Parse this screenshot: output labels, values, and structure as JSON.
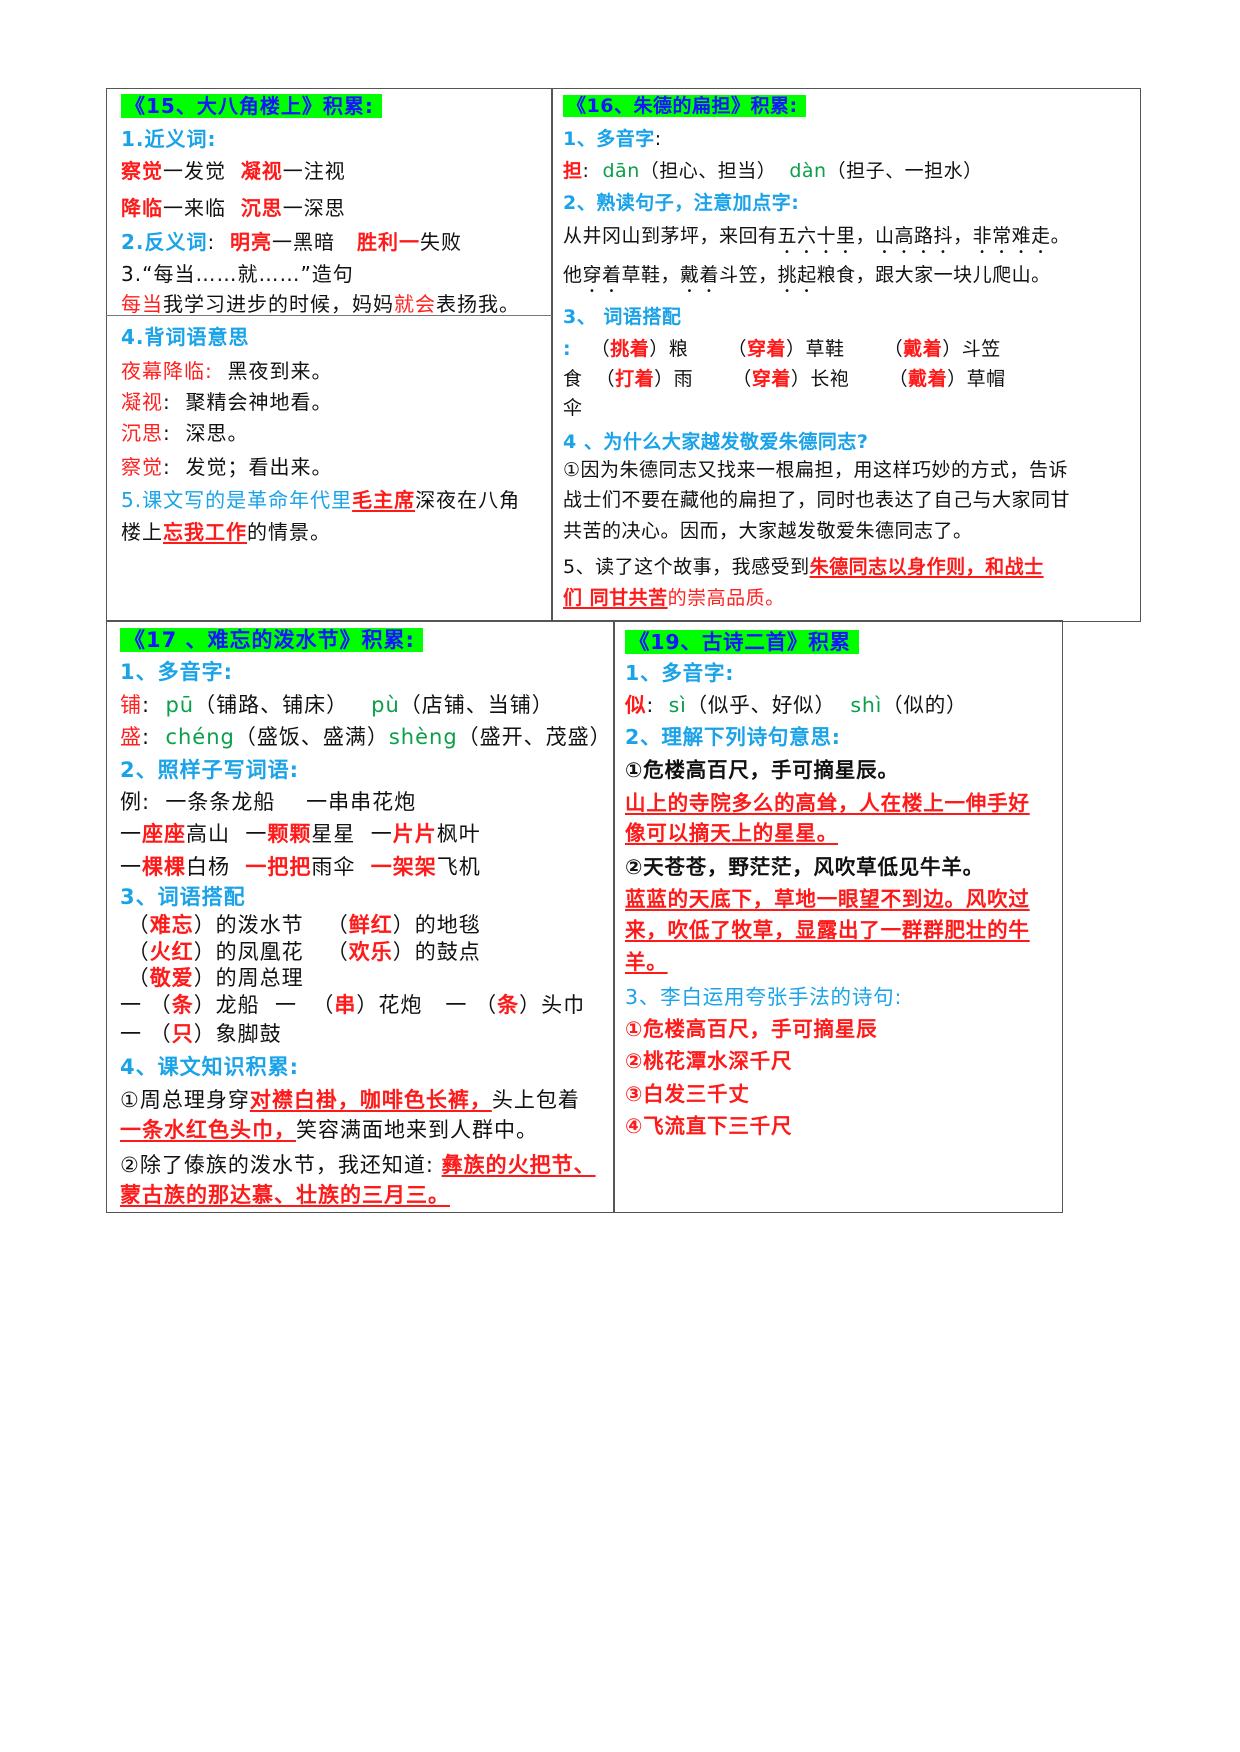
{
  "blocks": [
    {
      "id": "lesson-15",
      "lines": [
        [
          [
            "h",
            "《15、大八角楼上》积累:"
          ]
        ],
        [
          [
            "c",
            "1.近义词:"
          ]
        ],
        [
          [
            "r",
            "察觉"
          ],
          [
            "k",
            "一发觉  "
          ],
          [
            "r",
            "凝视"
          ],
          [
            "k",
            "一注视"
          ]
        ],
        [
          [
            "r",
            "降临"
          ],
          [
            "k",
            "一来临  "
          ],
          [
            "r",
            "沉思"
          ],
          [
            "k",
            "一深思"
          ]
        ],
        [
          [
            "c",
            "2.反义词"
          ],
          [
            "k",
            ":  "
          ],
          [
            "r",
            "明亮"
          ],
          [
            "k",
            "一黑暗   "
          ],
          [
            "r",
            "胜利一"
          ],
          [
            "k",
            "失败"
          ]
        ],
        [
          [
            "k",
            "3.“每当……就……”造句"
          ]
        ],
        [
          [
            "rn",
            "每当"
          ],
          [
            "k",
            "我学习进步的时候，妈妈"
          ],
          [
            "rn",
            "就会"
          ],
          [
            "k",
            "表扬我。"
          ]
        ],
        [
          [
            "c",
            "4.背词语意思"
          ]
        ],
        [
          [
            "rn",
            "夜幕降临: "
          ],
          [
            "k",
            " 黑夜到来。"
          ]
        ],
        [
          [
            "rn",
            "凝视"
          ],
          [
            "k",
            ":  聚精会神地看。"
          ]
        ],
        [
          [
            "rn",
            "沉思"
          ],
          [
            "k",
            ":  深思。"
          ]
        ],
        [
          [
            "rn",
            "察觉"
          ],
          [
            "k",
            ":  发觉；看出来。"
          ]
        ],
        [
          [
            "cn",
            "5.课文写的是革命年代里"
          ],
          [
            "u",
            "毛主席"
          ],
          [
            "k",
            "深夜在八角"
          ]
        ],
        [
          [
            "k",
            "楼上"
          ],
          [
            "u",
            "忘我工作"
          ],
          [
            "k",
            "的情景。"
          ]
        ]
      ]
    },
    {
      "id": "lesson-16",
      "lines": [
        [
          [
            "h",
            "《16、朱德的扁担》积累:"
          ]
        ],
        [
          [
            "c",
            "1、多音字"
          ],
          [
            "k",
            ":"
          ]
        ],
        [
          [
            "r",
            "担"
          ],
          [
            "k",
            ":  "
          ],
          [
            "g",
            "dān"
          ],
          [
            "k",
            "（担心、担当）  "
          ],
          [
            "g",
            "dàn"
          ],
          [
            "k",
            "（担子、一担水）"
          ]
        ],
        [
          [
            "c",
            "2、熟读句子，注意加点字:"
          ]
        ],
        [
          [
            "k",
            "从井冈山到茅坪，来回有"
          ],
          [
            "dot",
            "五六十里"
          ],
          [
            "k",
            "，"
          ],
          [
            "dot",
            "山高路抖"
          ],
          [
            "k",
            "，"
          ],
          [
            "dot",
            "非常难走"
          ],
          [
            "k",
            "。"
          ]
        ],
        [
          [
            "k",
            "他"
          ],
          [
            "dot",
            "穿着"
          ],
          [
            "k",
            "草鞋，"
          ],
          [
            "dot",
            "戴着"
          ],
          [
            "k",
            "斗笠，"
          ],
          [
            "dot",
            "挑起"
          ],
          [
            "k",
            "粮食，跟大家一块儿爬山。"
          ]
        ],
        [
          [
            "c",
            "3、 词语搭配"
          ]
        ],
        [
          [
            "c",
            ":"
          ],
          [
            "k",
            "   （"
          ],
          [
            "r",
            "挑着"
          ],
          [
            "k",
            "）粮      （"
          ],
          [
            "r",
            "穿着"
          ],
          [
            "k",
            "）草鞋      （"
          ],
          [
            "r",
            "戴着"
          ],
          [
            "k",
            "）斗笠"
          ]
        ],
        [
          [
            "k",
            "食  （"
          ],
          [
            "r",
            "打着"
          ],
          [
            "k",
            "）雨      （"
          ],
          [
            "r",
            "穿着"
          ],
          [
            "k",
            "）长袍      （"
          ],
          [
            "r",
            "戴着"
          ],
          [
            "k",
            "）草帽"
          ]
        ],
        [
          [
            "k",
            "伞"
          ]
        ],
        [
          [
            "c",
            "4 、为什么大家越发敬爱朱德同志?"
          ]
        ],
        [
          [
            "k",
            "①因为朱德同志又找来一根扁担，用这样巧妙的方式，告诉"
          ]
        ],
        [
          [
            "k",
            "战士们不要在藏他的扁担了，同时也表达了自己与大家同甘"
          ]
        ],
        [
          [
            "k",
            "共苦的决心。因而，大家越发敬爱朱德同志了。"
          ]
        ],
        [
          [
            "k",
            "5、读了这个故事，我感受到"
          ],
          [
            "u",
            "朱德同志以身作则，和战士"
          ]
        ],
        [
          [
            "u",
            "们 同甘共苦"
          ],
          [
            "rn",
            "的崇高品质。"
          ]
        ]
      ]
    },
    {
      "id": "lesson-17",
      "lines": [
        [
          [
            "h",
            "《17 、难忘的泼水节》积累:"
          ]
        ],
        [
          [
            "c",
            "1、多音字:"
          ]
        ],
        [
          [
            "rn",
            "铺"
          ],
          [
            "k",
            ":  "
          ],
          [
            "g",
            "pū"
          ],
          [
            "k",
            "（铺路、铺床）   "
          ],
          [
            "g",
            "pù"
          ],
          [
            "k",
            "（店铺、当铺）"
          ]
        ],
        [
          [
            "rn",
            "盛"
          ],
          [
            "k",
            ":  "
          ],
          [
            "g",
            "chéng"
          ],
          [
            "k",
            "（盛饭、盛满）"
          ],
          [
            "g",
            "shèng"
          ],
          [
            "k",
            "（盛开、茂盛）"
          ]
        ],
        [
          [
            "c",
            "2、照样子写词语:"
          ]
        ],
        [
          [
            "k",
            "例:  一条条龙船    一串串花炮"
          ]
        ],
        [
          [
            "k",
            "一"
          ],
          [
            "r",
            "座座"
          ],
          [
            "k",
            "高山  一"
          ],
          [
            "r",
            "颗颗"
          ],
          [
            "k",
            "星星  一"
          ],
          [
            "r",
            "片片"
          ],
          [
            "k",
            "枫叶"
          ]
        ],
        [
          [
            "k",
            "一"
          ],
          [
            "r",
            "棵棵"
          ],
          [
            "k",
            "白杨  "
          ],
          [
            "r",
            "一把把"
          ],
          [
            "k",
            "雨伞  "
          ],
          [
            "r",
            "一架架"
          ],
          [
            "k",
            "飞机"
          ]
        ],
        [
          [
            "c",
            "3、词语搭配"
          ]
        ],
        [
          [
            "k",
            " （"
          ],
          [
            "r",
            "难忘"
          ],
          [
            "k",
            "）的泼水节   （"
          ],
          [
            "r",
            "鲜红"
          ],
          [
            "k",
            "）的地毯"
          ]
        ],
        [
          [
            "k",
            " （"
          ],
          [
            "r",
            "火红"
          ],
          [
            "k",
            "）的凤凰花   （"
          ],
          [
            "r",
            "欢乐"
          ],
          [
            "k",
            "）的鼓点"
          ]
        ],
        [
          [
            "k",
            " （"
          ],
          [
            "r",
            "敬爱"
          ],
          [
            "k",
            "）的周总理"
          ]
        ],
        [
          [
            "k",
            "一 （"
          ],
          [
            "r",
            "条"
          ],
          [
            "k",
            "）龙船  一  （"
          ],
          [
            "r",
            "串"
          ],
          [
            "k",
            "）花炮   一 （"
          ],
          [
            "r",
            "条"
          ],
          [
            "k",
            "）头巾"
          ]
        ],
        [
          [
            "k",
            "一 （"
          ],
          [
            "r",
            "只"
          ],
          [
            "k",
            "）象脚鼓"
          ]
        ],
        [
          [
            "c",
            "4、课文知识积累:"
          ]
        ],
        [
          [
            "k",
            "①周总理身穿"
          ],
          [
            "u",
            "对襟白褂，咖啡色长裤，"
          ],
          [
            "k",
            "头上包着"
          ]
        ],
        [
          [
            "u",
            "一条水红色头巾，"
          ],
          [
            "k",
            "笑容满面地来到人群中。"
          ]
        ],
        [
          [
            "k",
            "②除了傣族的泼水节，我还知道: "
          ],
          [
            "u",
            "彝族的火把节、"
          ]
        ],
        [
          [
            "u",
            "蒙古族的那达慕、壮族的三月三。"
          ]
        ]
      ]
    },
    {
      "id": "lesson-19",
      "lines": [
        [
          [
            "h",
            "《19、古诗二首》积累"
          ]
        ],
        [
          [
            "c",
            "1、多音字:"
          ]
        ],
        [
          [
            "r",
            "似"
          ],
          [
            "k",
            ":  "
          ],
          [
            "g",
            "sì"
          ],
          [
            "k",
            "（似乎、好似）  "
          ],
          [
            "g",
            "shì"
          ],
          [
            "k",
            "（似的）"
          ]
        ],
        [
          [
            "c",
            "2、理解下列诗句意思:"
          ]
        ],
        [
          [
            "kb",
            "①危楼高百尺，手可摘星辰。"
          ]
        ],
        [
          [
            "u",
            "山上的寺院多么的高耸，人在楼上一伸手好"
          ]
        ],
        [
          [
            "u",
            "像可以摘天上的星星。"
          ]
        ],
        [
          [
            "kb",
            "②天苍苍，野茫茫，风吹草低见牛羊。"
          ]
        ],
        [
          [
            "u",
            "蓝蓝的天底下，草地一眼望不到边。风吹过"
          ]
        ],
        [
          [
            "u",
            "来，吹低了牧草，显露出了一群群肥壮的牛"
          ]
        ],
        [
          [
            "u",
            "羊。"
          ]
        ],
        [
          [
            "cn",
            "3、李白运用夸张手法的诗句:"
          ]
        ],
        [
          [
            "r",
            "①危楼高百尺，手可摘星辰"
          ]
        ],
        [
          [
            "r",
            "②桃花潭水深千尺"
          ]
        ],
        [
          [
            "r",
            "③白发三千丈"
          ]
        ],
        [
          [
            "r",
            "④飞流直下三千尺"
          ]
        ]
      ]
    }
  ]
}
